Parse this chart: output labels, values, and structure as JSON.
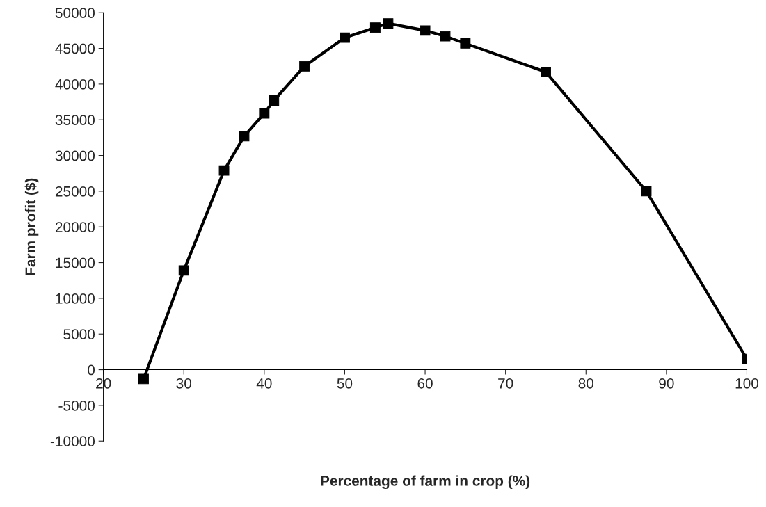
{
  "chart_data": {
    "type": "line",
    "xlabel": "Percentage of farm in crop (%)",
    "ylabel": "Farm profit ($)",
    "x": [
      25,
      30,
      35,
      37.5,
      40,
      41.2,
      45,
      50,
      53.8,
      55.4,
      60,
      62.5,
      65,
      75,
      87.5,
      100
    ],
    "series": [
      {
        "color": "#000000",
        "values": [
          -1300,
          13900,
          27900,
          32700,
          35900,
          37700,
          42500,
          46500,
          47900,
          48500,
          47500,
          46700,
          45700,
          41700,
          25000,
          1500
        ]
      }
    ],
    "xlim": [
      20,
      100
    ],
    "xticks": [
      20,
      30,
      40,
      50,
      60,
      70,
      80,
      90,
      100
    ],
    "ylim": [
      -10000,
      50000
    ],
    "yticks": [
      -10000,
      -5000,
      0,
      5000,
      10000,
      15000,
      20000,
      25000,
      30000,
      35000,
      40000,
      45000,
      50000
    ],
    "marker": "square",
    "line_style": "solid",
    "grid": false,
    "legend": false
  }
}
